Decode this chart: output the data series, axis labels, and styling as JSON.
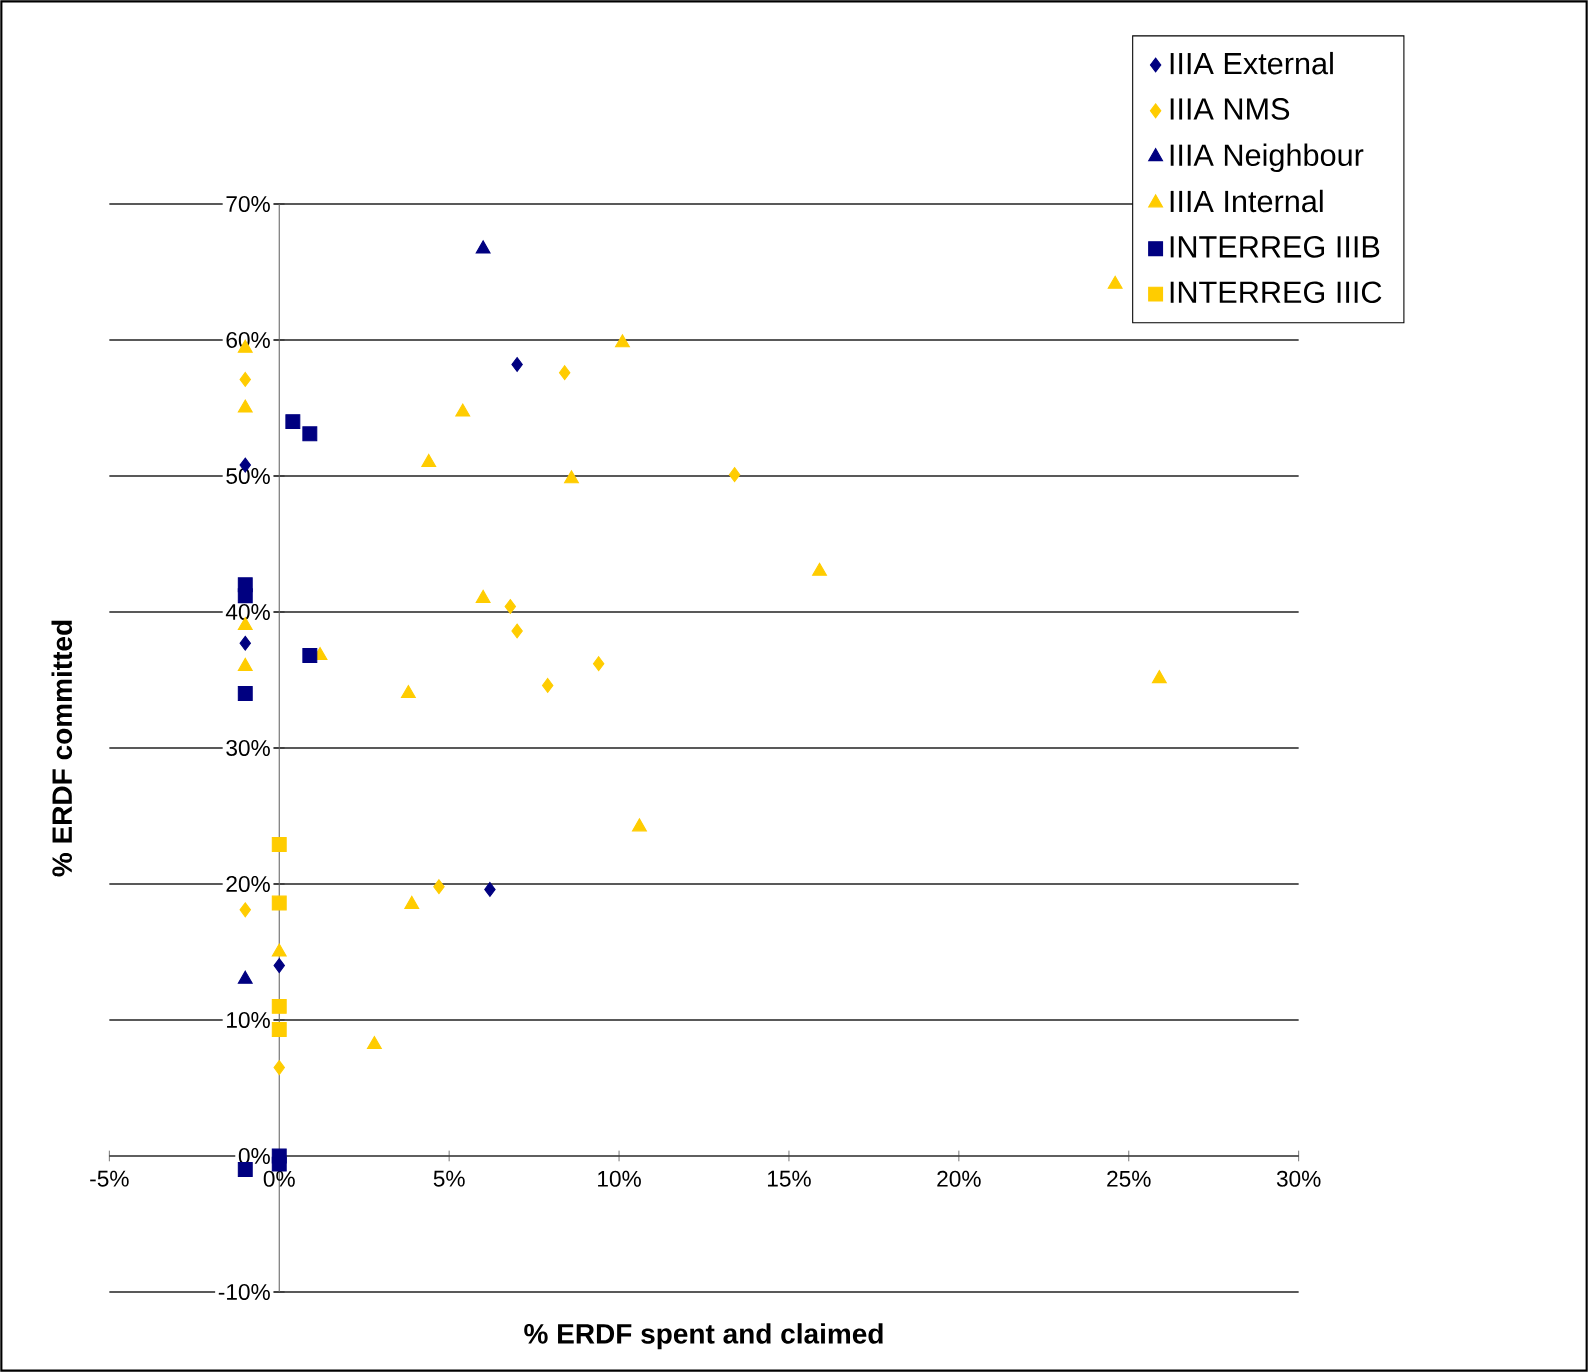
{
  "chart_data": {
    "type": "scatter",
    "xlabel": "% ERDF spent and claimed",
    "ylabel": "% ERDF committed",
    "xlim": [
      -5,
      30
    ],
    "ylim": [
      -10,
      70
    ],
    "xticks": [
      {
        "value": -5,
        "label": "-5%"
      },
      {
        "value": 0,
        "label": "0%"
      },
      {
        "value": 5,
        "label": "5%"
      },
      {
        "value": 10,
        "label": "10%"
      },
      {
        "value": 15,
        "label": "15%"
      },
      {
        "value": 20,
        "label": "20%"
      },
      {
        "value": 25,
        "label": "25%"
      },
      {
        "value": 30,
        "label": "30%"
      }
    ],
    "yticks": [
      {
        "value": -10,
        "label": "-10%"
      },
      {
        "value": 0,
        "label": "0%"
      },
      {
        "value": 10,
        "label": "10%"
      },
      {
        "value": 20,
        "label": "20%"
      },
      {
        "value": 30,
        "label": "30%"
      },
      {
        "value": 40,
        "label": "40%"
      },
      {
        "value": 50,
        "label": "50%"
      },
      {
        "value": 60,
        "label": "60%"
      },
      {
        "value": 70,
        "label": "70%"
      }
    ],
    "grid": "y",
    "legend": "top right",
    "series": [
      {
        "name": "IIIA External",
        "color": "#000080",
        "marker": "diamond",
        "x": [
          -1,
          -1,
          7,
          6.2,
          0
        ],
        "values": [
          50.8,
          37.7,
          58.2,
          19.6,
          14
        ]
      },
      {
        "name": "IIIA NMS",
        "color": "#ffcc00",
        "marker": "diamond",
        "x": [
          -1,
          -1,
          0,
          4.7,
          6.8,
          7,
          7.9,
          8.4,
          9.4,
          13.4
        ],
        "values": [
          57.1,
          18.1,
          6.5,
          19.8,
          40.4,
          38.6,
          34.6,
          57.6,
          36.2,
          50.1
        ]
      },
      {
        "name": "IIIA Neighbour",
        "color": "#000080",
        "marker": "triangle",
        "x": [
          6,
          -1
        ],
        "values": [
          66.7,
          13
        ]
      },
      {
        "name": "IIIA Internal",
        "color": "#ffcc00",
        "marker": "triangle",
        "x": [
          -1,
          -1,
          -1,
          -1,
          0,
          1.2,
          2.8,
          3.8,
          3.9,
          4.4,
          5.4,
          6,
          8.6,
          10.1,
          10.6,
          15.9,
          24.6,
          25.9
        ],
        "values": [
          59.4,
          55,
          39,
          36,
          15,
          36.8,
          8.2,
          34,
          18.5,
          51,
          54.7,
          41,
          49.8,
          59.8,
          24.2,
          43,
          64.1,
          35.1
        ]
      },
      {
        "name": "INTERREG IIIB",
        "color": "#000080",
        "marker": "square",
        "x": [
          -1,
          -1,
          -1,
          0.4,
          0.9,
          0.9,
          0,
          0,
          -1
        ],
        "values": [
          42,
          41.2,
          34,
          54,
          53.1,
          36.8,
          0,
          -0.6,
          -1
        ]
      },
      {
        "name": "INTERREG IIIC",
        "color": "#ffcc00",
        "marker": "square",
        "x": [
          0,
          0,
          0,
          0
        ],
        "values": [
          22.9,
          18.6,
          11,
          9.3
        ]
      }
    ]
  }
}
